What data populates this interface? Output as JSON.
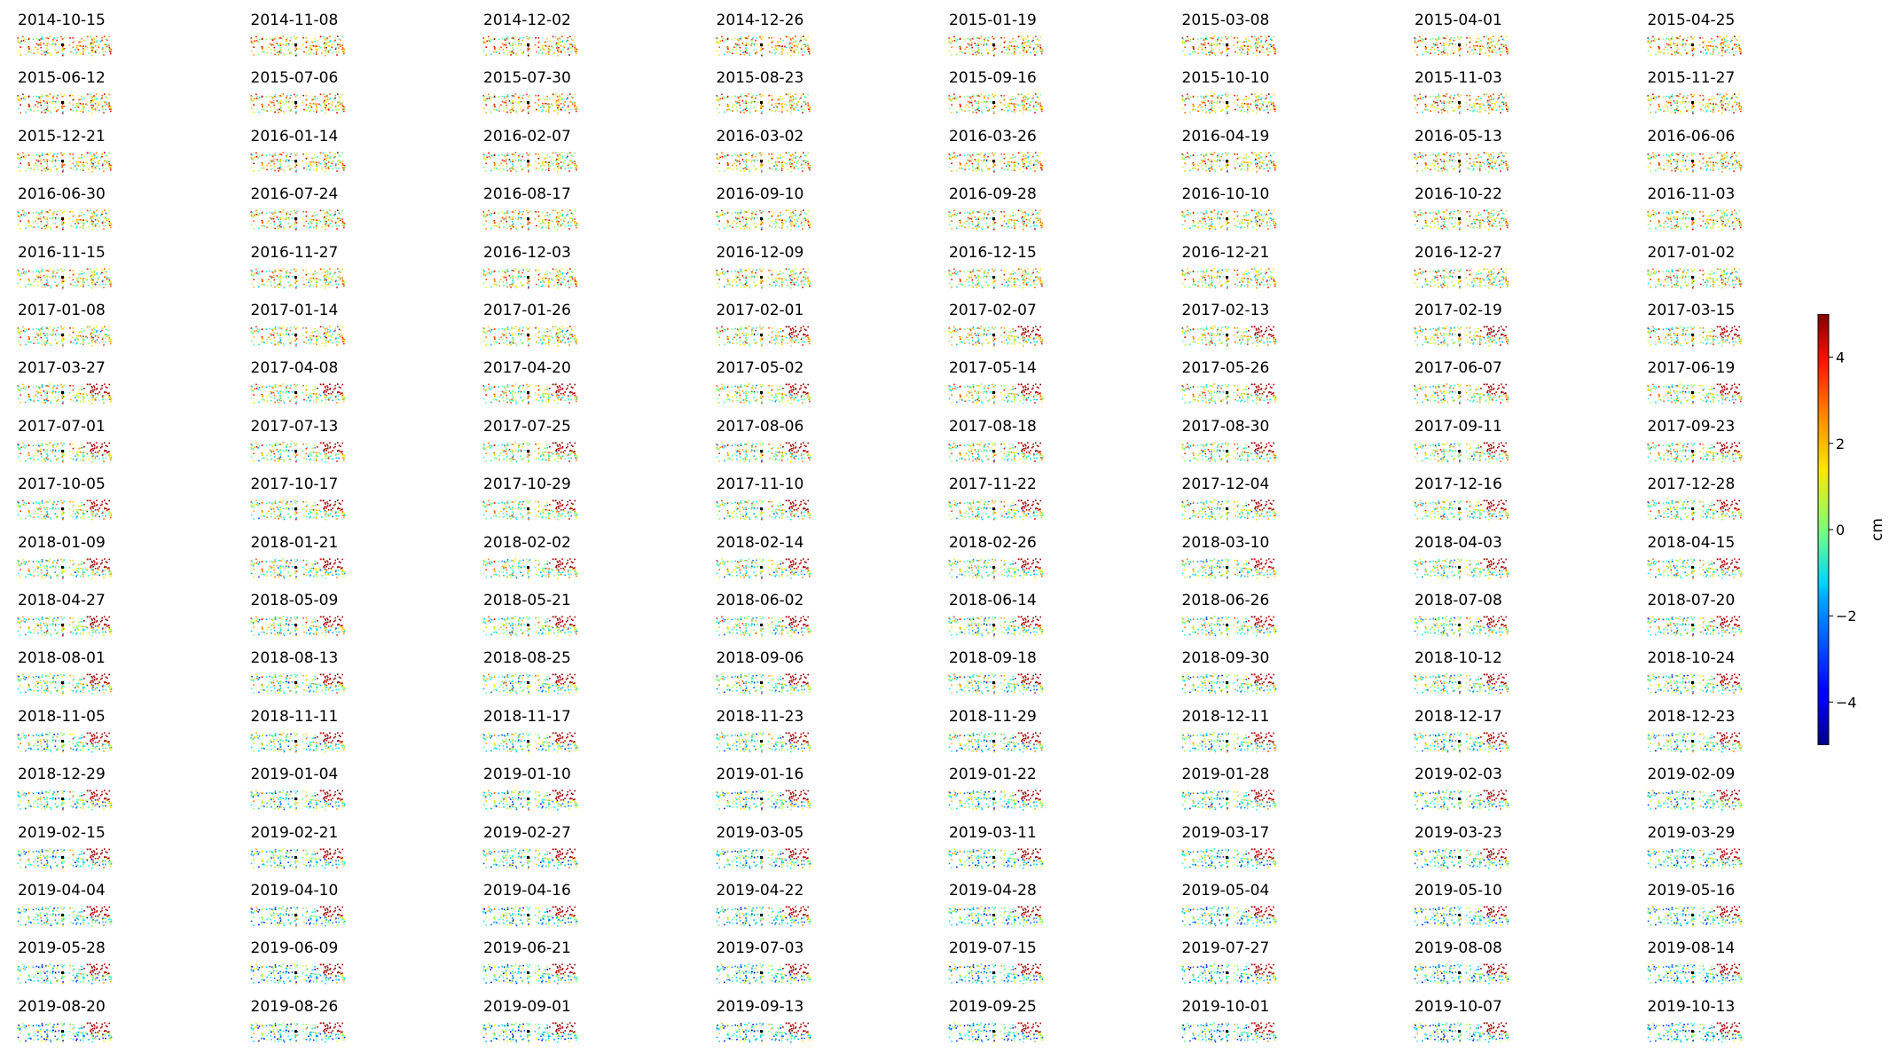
{
  "chart_data": {
    "type": "scatter",
    "description_kind": "small-multiples",
    "panel_titles": [
      "2014-10-15",
      "2014-11-08",
      "2014-12-02",
      "2014-12-26",
      "2015-01-19",
      "2015-03-08",
      "2015-04-01",
      "2015-04-25",
      "2015-06-12",
      "2015-07-06",
      "2015-07-30",
      "2015-08-23",
      "2015-09-16",
      "2015-10-10",
      "2015-11-03",
      "2015-11-27",
      "2015-12-21",
      "2016-01-14",
      "2016-02-07",
      "2016-03-02",
      "2016-03-26",
      "2016-04-19",
      "2016-05-13",
      "2016-06-06",
      "2016-06-30",
      "2016-07-24",
      "2016-08-17",
      "2016-09-10",
      "2016-09-28",
      "2016-10-10",
      "2016-10-22",
      "2016-11-03",
      "2016-11-15",
      "2016-11-27",
      "2016-12-03",
      "2016-12-09",
      "2016-12-15",
      "2016-12-21",
      "2016-12-27",
      "2017-01-02",
      "2017-01-08",
      "2017-01-14",
      "2017-01-26",
      "2017-02-01",
      "2017-02-07",
      "2017-02-13",
      "2017-02-19",
      "2017-03-15",
      "2017-03-27",
      "2017-04-08",
      "2017-04-20",
      "2017-05-02",
      "2017-05-14",
      "2017-05-26",
      "2017-06-07",
      "2017-06-19",
      "2017-07-01",
      "2017-07-13",
      "2017-07-25",
      "2017-08-06",
      "2017-08-18",
      "2017-08-30",
      "2017-09-11",
      "2017-09-23",
      "2017-10-05",
      "2017-10-17",
      "2017-10-29",
      "2017-11-10",
      "2017-11-22",
      "2017-12-04",
      "2017-12-16",
      "2017-12-28",
      "2018-01-09",
      "2018-01-21",
      "2018-02-02",
      "2018-02-14",
      "2018-02-26",
      "2018-03-10",
      "2018-04-03",
      "2018-04-15",
      "2018-04-27",
      "2018-05-09",
      "2018-05-21",
      "2018-06-02",
      "2018-06-14",
      "2018-06-26",
      "2018-07-08",
      "2018-07-20",
      "2018-08-01",
      "2018-08-13",
      "2018-08-25",
      "2018-09-06",
      "2018-09-18",
      "2018-09-30",
      "2018-10-12",
      "2018-10-24",
      "2018-11-05",
      "2018-11-11",
      "2018-11-17",
      "2018-11-23",
      "2018-11-29",
      "2018-12-11",
      "2018-12-17",
      "2018-12-23",
      "2018-12-29",
      "2019-01-04",
      "2019-01-10",
      "2019-01-16",
      "2019-01-22",
      "2019-01-28",
      "2019-02-03",
      "2019-02-09",
      "2019-02-15",
      "2019-02-21",
      "2019-02-27",
      "2019-03-05",
      "2019-03-11",
      "2019-03-17",
      "2019-03-23",
      "2019-03-29",
      "2019-04-04",
      "2019-04-10",
      "2019-04-16",
      "2019-04-22",
      "2019-04-28",
      "2019-05-04",
      "2019-05-10",
      "2019-05-16",
      "2019-05-28",
      "2019-06-09",
      "2019-06-21",
      "2019-07-03",
      "2019-07-15",
      "2019-07-27",
      "2019-08-08",
      "2019-08-14",
      "2019-08-20",
      "2019-08-26",
      "2019-09-01",
      "2019-09-13",
      "2019-09-25",
      "2019-10-01",
      "2019-10-07",
      "2019-10-13"
    ],
    "grid_columns": 8,
    "colormap": "jet",
    "colorbar": {
      "label": "cm",
      "vmin": -5,
      "vmax": 5,
      "ticks": [
        -4,
        -2,
        0,
        2,
        4
      ],
      "tick_labels": [
        "−4",
        "−2",
        "0",
        "2",
        "4"
      ]
    },
    "axes_visible": false,
    "grid": false
  }
}
